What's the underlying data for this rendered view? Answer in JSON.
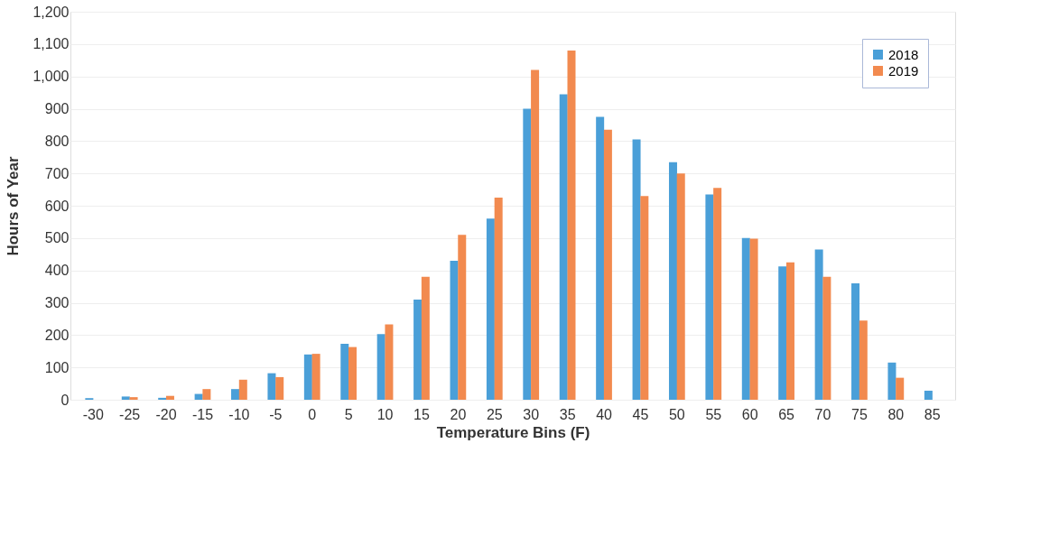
{
  "chart_data": {
    "type": "bar",
    "xlabel": "Temperature Bins (F)",
    "ylabel": "Hours of Year",
    "categories": [
      "-30",
      "-25",
      "-20",
      "-15",
      "-10",
      "-5",
      "0",
      "5",
      "10",
      "15",
      "20",
      "25",
      "30",
      "35",
      "40",
      "45",
      "50",
      "55",
      "60",
      "65",
      "70",
      "75",
      "80",
      "85"
    ],
    "series": [
      {
        "name": "2018",
        "color": "#4a9fd8",
        "values": [
          5,
          10,
          6,
          18,
          33,
          82,
          140,
          173,
          203,
          310,
          430,
          560,
          900,
          945,
          875,
          805,
          735,
          635,
          500,
          412,
          465,
          360,
          115,
          28
        ]
      },
      {
        "name": "2019",
        "color": "#f28a4f",
        "values": [
          null,
          8,
          12,
          33,
          62,
          70,
          142,
          163,
          233,
          380,
          510,
          625,
          1020,
          1080,
          835,
          630,
          700,
          655,
          498,
          425,
          380,
          245,
          68,
          null
        ]
      }
    ],
    "ylim": [
      0,
      1200
    ],
    "yticks": [
      {
        "value": 0,
        "label": "0"
      },
      {
        "value": 100,
        "label": "100"
      },
      {
        "value": 200,
        "label": "200"
      },
      {
        "value": 300,
        "label": "300"
      },
      {
        "value": 400,
        "label": "400"
      },
      {
        "value": 500,
        "label": "500"
      },
      {
        "value": 600,
        "label": "600"
      },
      {
        "value": 700,
        "label": "700"
      },
      {
        "value": 800,
        "label": "800"
      },
      {
        "value": 900,
        "label": "900"
      },
      {
        "value": 1000,
        "label": "1,000"
      },
      {
        "value": 1100,
        "label": "1,100"
      },
      {
        "value": 1200,
        "label": "1,200"
      }
    ],
    "grid": "y",
    "legend": "top right"
  }
}
